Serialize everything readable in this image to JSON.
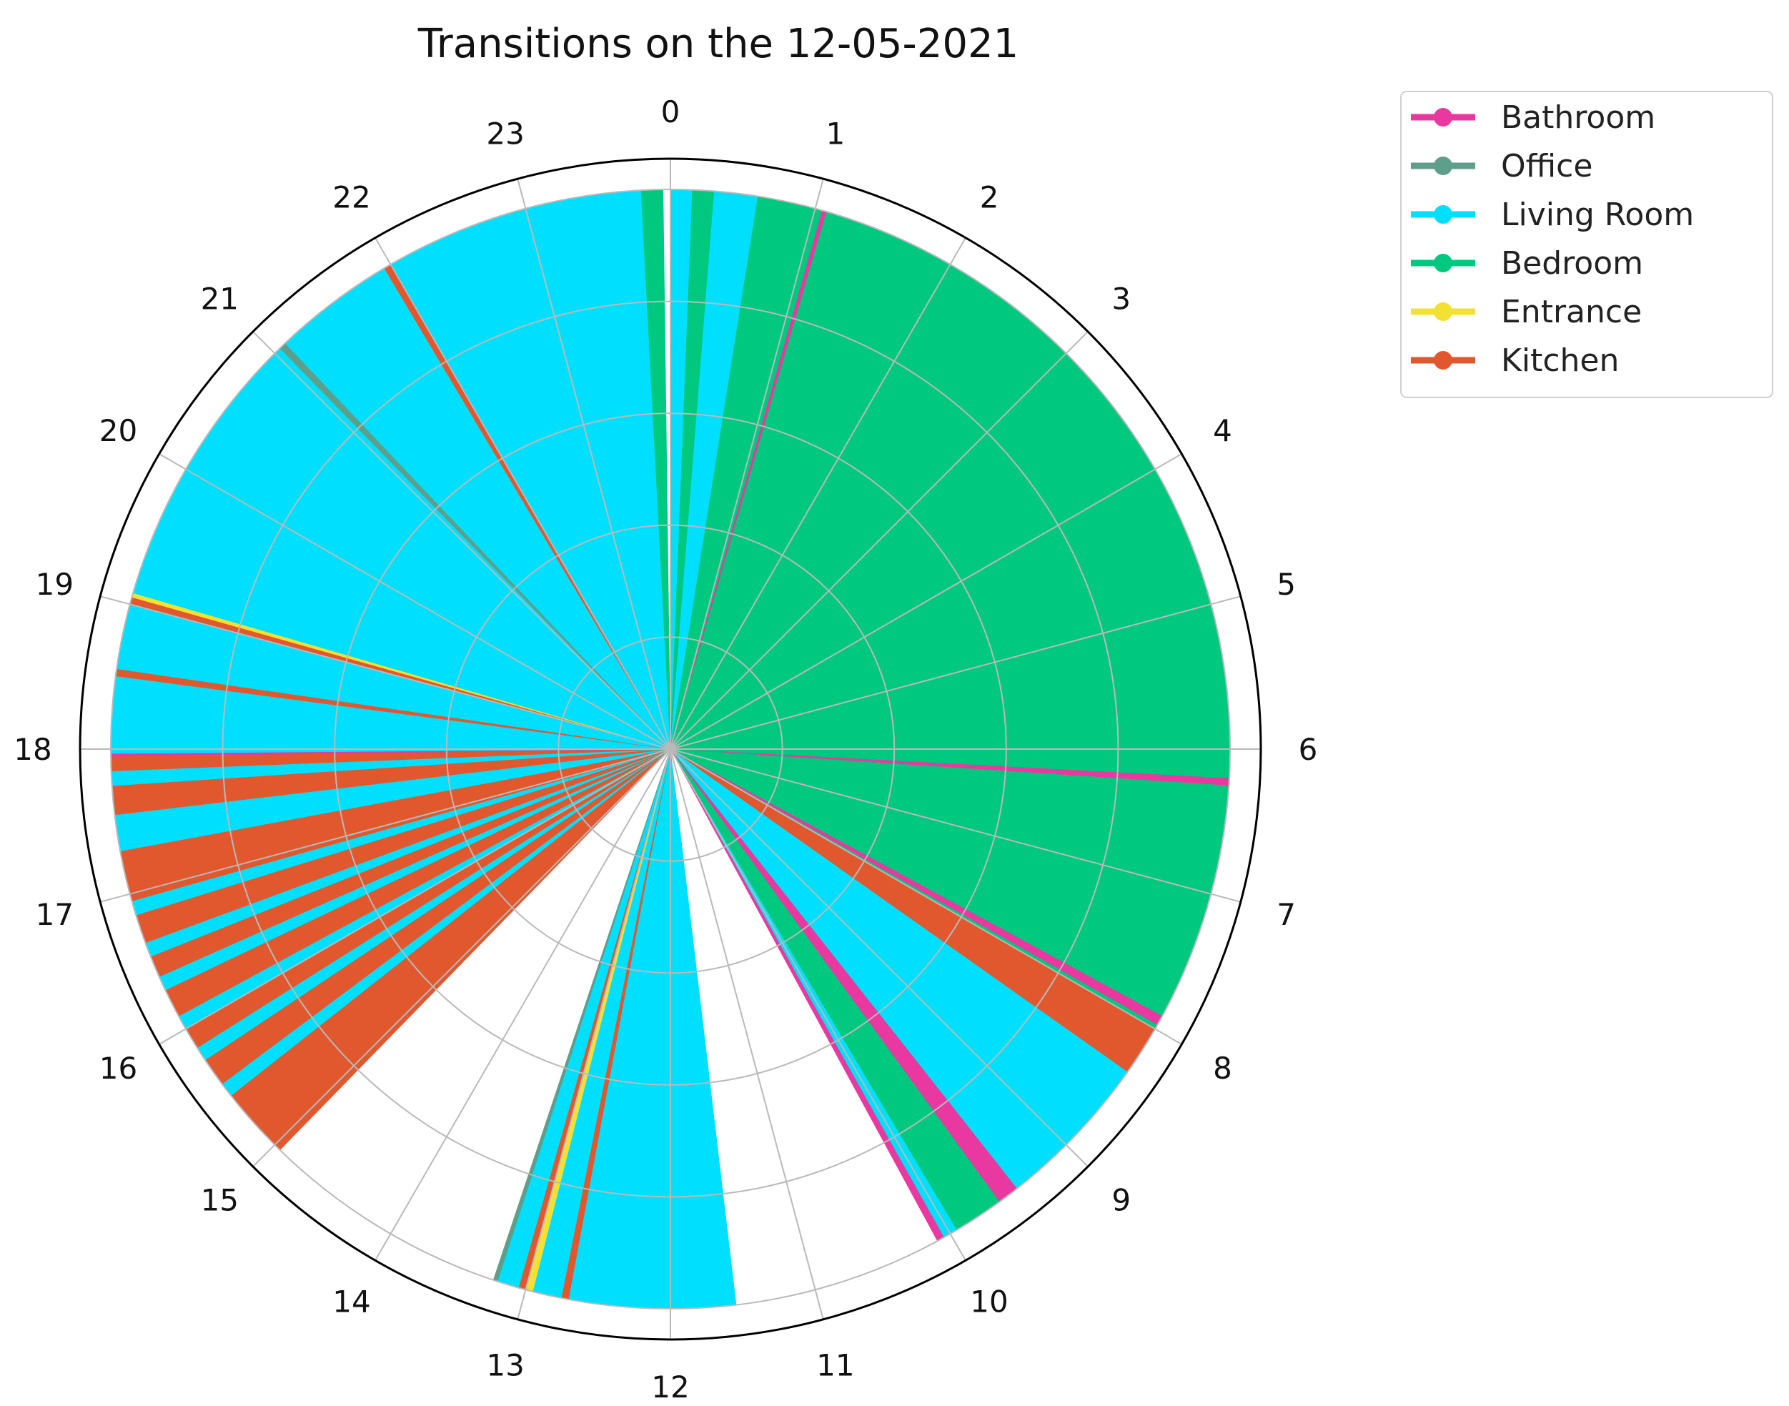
{
  "chart_data": {
    "type": "polar-bar",
    "title": "Transitions on the 12-05-2021",
    "theta_unit": "hour",
    "theta_range": [
      0,
      24
    ],
    "direction": "clockwise",
    "zero_location": "top",
    "angular_ticks": [
      "0",
      "1",
      "2",
      "3",
      "4",
      "5",
      "6",
      "7",
      "8",
      "9",
      "10",
      "11",
      "12",
      "13",
      "14",
      "15",
      "16",
      "17",
      "18",
      "19",
      "20",
      "21",
      "22",
      "23"
    ],
    "radial_grid_rings": 5,
    "grid": true,
    "legend": {
      "placement": "upper-right-outside",
      "entries": [
        {
          "name": "Bathroom",
          "color": "#e9389f"
        },
        {
          "name": "Office",
          "color": "#5f9e8a"
        },
        {
          "name": "Living Room",
          "color": "#00e0fe"
        },
        {
          "name": "Bedroom",
          "color": "#00c87f"
        },
        {
          "name": "Entrance",
          "color": "#f2e132"
        },
        {
          "name": "Kitchen",
          "color": "#e2582e"
        }
      ]
    },
    "series": [
      {
        "room": "Living Room",
        "start": 0.0,
        "end": 0.15
      },
      {
        "room": "Bedroom",
        "start": 0.15,
        "end": 0.3
      },
      {
        "room": "Living Room",
        "start": 0.3,
        "end": 0.6
      },
      {
        "room": "Bedroom",
        "start": 0.6,
        "end": 1.05
      },
      {
        "room": "Bathroom",
        "start": 1.05,
        "end": 1.08
      },
      {
        "room": "Bedroom",
        "start": 1.08,
        "end": 6.2
      },
      {
        "room": "Bathroom",
        "start": 6.2,
        "end": 6.25
      },
      {
        "room": "Bedroom",
        "start": 6.25,
        "end": 7.9
      },
      {
        "room": "Bathroom",
        "start": 7.9,
        "end": 7.97
      },
      {
        "room": "Bedroom",
        "start": 7.97,
        "end": 8.0
      },
      {
        "room": "Kitchen",
        "start": 8.0,
        "end": 8.35
      },
      {
        "room": "Living Room",
        "start": 8.35,
        "end": 9.45
      },
      {
        "room": "Bathroom",
        "start": 9.45,
        "end": 9.6
      },
      {
        "room": "Bedroom",
        "start": 9.6,
        "end": 9.95
      },
      {
        "room": "Living Room",
        "start": 9.95,
        "end": 10.05
      },
      {
        "room": "Bathroom",
        "start": 10.05,
        "end": 10.1
      },
      {
        "room": "Living Room",
        "start": 11.55,
        "end": 12.7
      },
      {
        "room": "Kitchen",
        "start": 12.7,
        "end": 12.75
      },
      {
        "room": "Living Room",
        "start": 12.75,
        "end": 12.95
      },
      {
        "room": "Entrance",
        "start": 12.95,
        "end": 13.0
      },
      {
        "room": "Kitchen",
        "start": 13.0,
        "end": 13.05
      },
      {
        "room": "Living Room",
        "start": 13.05,
        "end": 13.2
      },
      {
        "room": "Office",
        "start": 13.2,
        "end": 13.23
      },
      {
        "room": "Kitchen",
        "start": 14.95,
        "end": 15.45
      },
      {
        "room": "Living Room",
        "start": 15.45,
        "end": 15.55
      },
      {
        "room": "Kitchen",
        "start": 15.55,
        "end": 15.75
      },
      {
        "room": "Living Room",
        "start": 15.75,
        "end": 15.85
      },
      {
        "room": "Kitchen",
        "start": 15.85,
        "end": 16.0
      },
      {
        "room": "Living Room",
        "start": 16.0,
        "end": 16.1
      },
      {
        "room": "Kitchen",
        "start": 16.1,
        "end": 16.3
      },
      {
        "room": "Living Room",
        "start": 16.3,
        "end": 16.4
      },
      {
        "room": "Kitchen",
        "start": 16.4,
        "end": 16.55
      },
      {
        "room": "Living Room",
        "start": 16.55,
        "end": 16.65
      },
      {
        "room": "Kitchen",
        "start": 16.65,
        "end": 16.85
      },
      {
        "room": "Living Room",
        "start": 16.85,
        "end": 16.95
      },
      {
        "room": "Kitchen",
        "start": 16.95,
        "end": 17.3
      },
      {
        "room": "Living Room",
        "start": 17.3,
        "end": 17.55
      },
      {
        "room": "Kitchen",
        "start": 17.55,
        "end": 17.75
      },
      {
        "room": "Living Room",
        "start": 17.75,
        "end": 17.85
      },
      {
        "room": "Kitchen",
        "start": 17.85,
        "end": 17.95
      },
      {
        "room": "Bathroom",
        "start": 17.95,
        "end": 17.97
      },
      {
        "room": "Living Room",
        "start": 17.97,
        "end": 18.5
      },
      {
        "room": "Kitchen",
        "start": 18.5,
        "end": 18.55
      },
      {
        "room": "Living Room",
        "start": 18.55,
        "end": 19.0
      },
      {
        "room": "Kitchen",
        "start": 19.0,
        "end": 19.05
      },
      {
        "room": "Entrance",
        "start": 19.05,
        "end": 19.08
      },
      {
        "room": "Living Room",
        "start": 19.08,
        "end": 21.05
      },
      {
        "room": "Office",
        "start": 21.05,
        "end": 21.1
      },
      {
        "room": "Living Room",
        "start": 21.1,
        "end": 21.95
      },
      {
        "room": "Kitchen",
        "start": 21.95,
        "end": 22.0
      },
      {
        "room": "Living Room",
        "start": 22.0,
        "end": 23.8
      },
      {
        "room": "Bedroom",
        "start": 23.8,
        "end": 23.95
      }
    ]
  }
}
